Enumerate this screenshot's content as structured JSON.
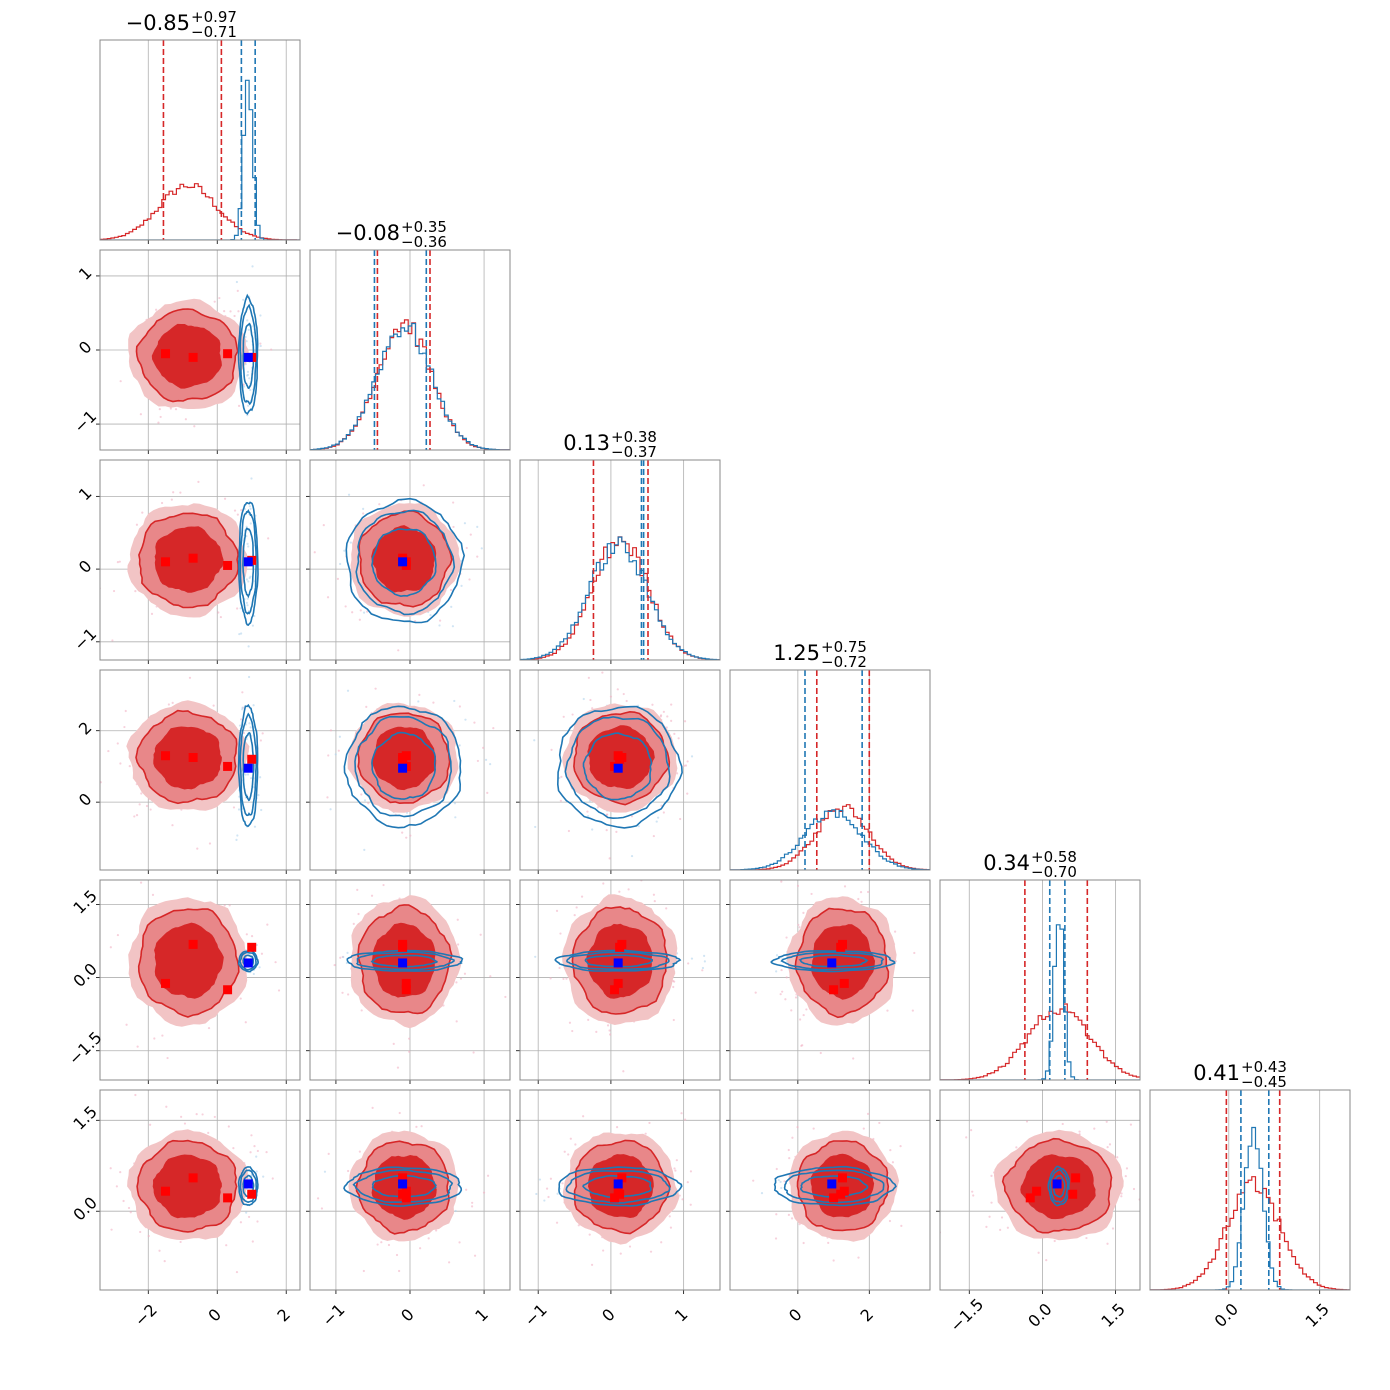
{
  "chart_data": {
    "type": "corner",
    "n_params": 6,
    "series": [
      {
        "color": "#d62728",
        "means": [
          -0.85,
          -0.08,
          0.13,
          1.25,
          0.34,
          0.41
        ],
        "sigmas": [
          0.84,
          0.36,
          0.38,
          0.74,
          0.64,
          0.44
        ],
        "quantile_lines": [
          [
            -1.56,
            0.12
          ],
          [
            -0.44,
            0.27
          ],
          [
            -0.24,
            0.51
          ],
          [
            0.53,
            2.0
          ],
          [
            -0.36,
            0.92
          ],
          [
            -0.04,
            0.84
          ]
        ],
        "markers": [
          [
            -1.5,
            -0.05,
            0.1,
            1.3,
            -0.12,
            0.33
          ],
          [
            -0.7,
            -0.1,
            0.15,
            1.25,
            0.68,
            0.55
          ],
          [
            0.3,
            -0.05,
            0.05,
            1.0,
            -0.25,
            0.22
          ],
          [
            1.0,
            -0.1,
            0.12,
            1.2,
            0.62,
            0.28
          ]
        ]
      },
      {
        "color": "#1f77b4",
        "means": [
          0.9,
          -0.08,
          0.1,
          1.0,
          0.34,
          0.41
        ],
        "sigmas": [
          0.13,
          0.37,
          0.4,
          0.8,
          0.1,
          0.15
        ],
        "quantile_lines": [
          [
            0.7,
            1.1
          ],
          [
            -0.48,
            0.22
          ],
          [
            0.42,
            0.45
          ],
          [
            0.2,
            1.8
          ],
          [
            0.15,
            0.46
          ],
          [
            0.2,
            0.66
          ]
        ],
        "truth": [
          0.9,
          -0.1,
          0.1,
          0.95,
          0.3,
          0.45
        ]
      }
    ],
    "titles": [
      {
        "value": "−0.85",
        "plus": "+0.97",
        "minus": "−0.71"
      },
      {
        "value": "−0.08",
        "plus": "+0.35",
        "minus": "−0.36"
      },
      {
        "value": "0.13",
        "plus": "+0.38",
        "minus": "−0.37"
      },
      {
        "value": "1.25",
        "plus": "+0.75",
        "minus": "−0.72"
      },
      {
        "value": "0.34",
        "plus": "+0.58",
        "minus": "−0.70"
      },
      {
        "value": "0.41",
        "plus": "+0.43",
        "minus": "−0.45"
      }
    ],
    "ranges": [
      [
        -3.4,
        2.4
      ],
      [
        -1.35,
        1.35
      ],
      [
        -1.25,
        1.5
      ],
      [
        -1.9,
        3.7
      ],
      [
        -2.1,
        2.0
      ],
      [
        -1.3,
        2.0
      ]
    ],
    "ticks": [
      {
        "values": [
          -2,
          0,
          2
        ],
        "labels": [
          "−2",
          "0",
          "2"
        ]
      },
      {
        "values": [
          -1,
          0,
          1
        ],
        "labels": [
          "−1",
          "0",
          "1"
        ]
      },
      {
        "values": [
          -1,
          0,
          1
        ],
        "labels": [
          "−1",
          "0",
          "1"
        ]
      },
      {
        "values": [
          0,
          2
        ],
        "labels": [
          "0",
          "2"
        ]
      },
      {
        "values": [
          -1.5,
          0.0,
          1.5
        ],
        "labels": [
          "−1.5",
          "0.0",
          "1.5"
        ]
      },
      {
        "values": [
          0.0,
          1.5
        ],
        "labels": [
          "0.0",
          "1.5"
        ]
      }
    ],
    "grid": true,
    "legend": "none"
  }
}
